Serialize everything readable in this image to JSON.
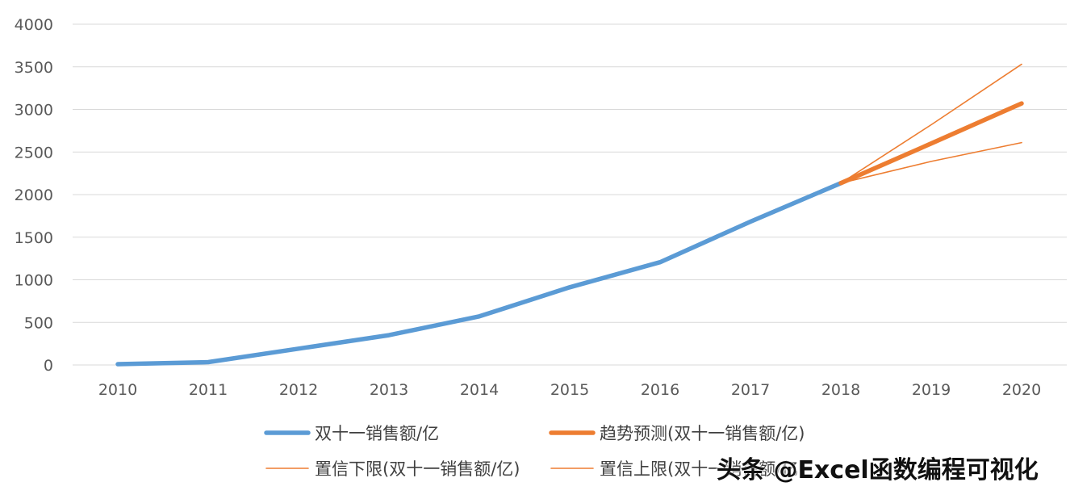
{
  "chart_data": {
    "type": "line",
    "categories": [
      "2010",
      "2011",
      "2012",
      "2013",
      "2014",
      "2015",
      "2016",
      "2017",
      "2018",
      "2019",
      "2020"
    ],
    "ylim": [
      0,
      4000
    ],
    "yticks": [
      0,
      500,
      1000,
      1500,
      2000,
      2500,
      3000,
      3500,
      4000
    ],
    "grid": true,
    "legend_position": "bottom",
    "series": [
      {
        "name": "双十一销售额/亿",
        "color": "#5b9bd5",
        "style": "thick",
        "values": [
          9.36,
          33.6,
          191,
          350,
          571,
          912,
          1207,
          1682,
          2135,
          null,
          null
        ]
      },
      {
        "name": "趋势预测(双十一销售额/亿)",
        "color": "#ed7d31",
        "style": "thick",
        "values": [
          null,
          null,
          null,
          null,
          null,
          null,
          null,
          null,
          2135,
          2600,
          3070
        ]
      },
      {
        "name": "置信下限(双十一销售额/亿)",
        "color": "#ed7d31",
        "style": "thin",
        "values": [
          null,
          null,
          null,
          null,
          null,
          null,
          null,
          null,
          2135,
          2390,
          2610
        ]
      },
      {
        "name": "置信上限(双十一销售额/亿)",
        "color": "#ed7d31",
        "style": "thin",
        "values": [
          null,
          null,
          null,
          null,
          null,
          null,
          null,
          null,
          2135,
          2820,
          3530
        ]
      }
    ]
  },
  "watermark": "头条 @Excel函数编程可视化"
}
